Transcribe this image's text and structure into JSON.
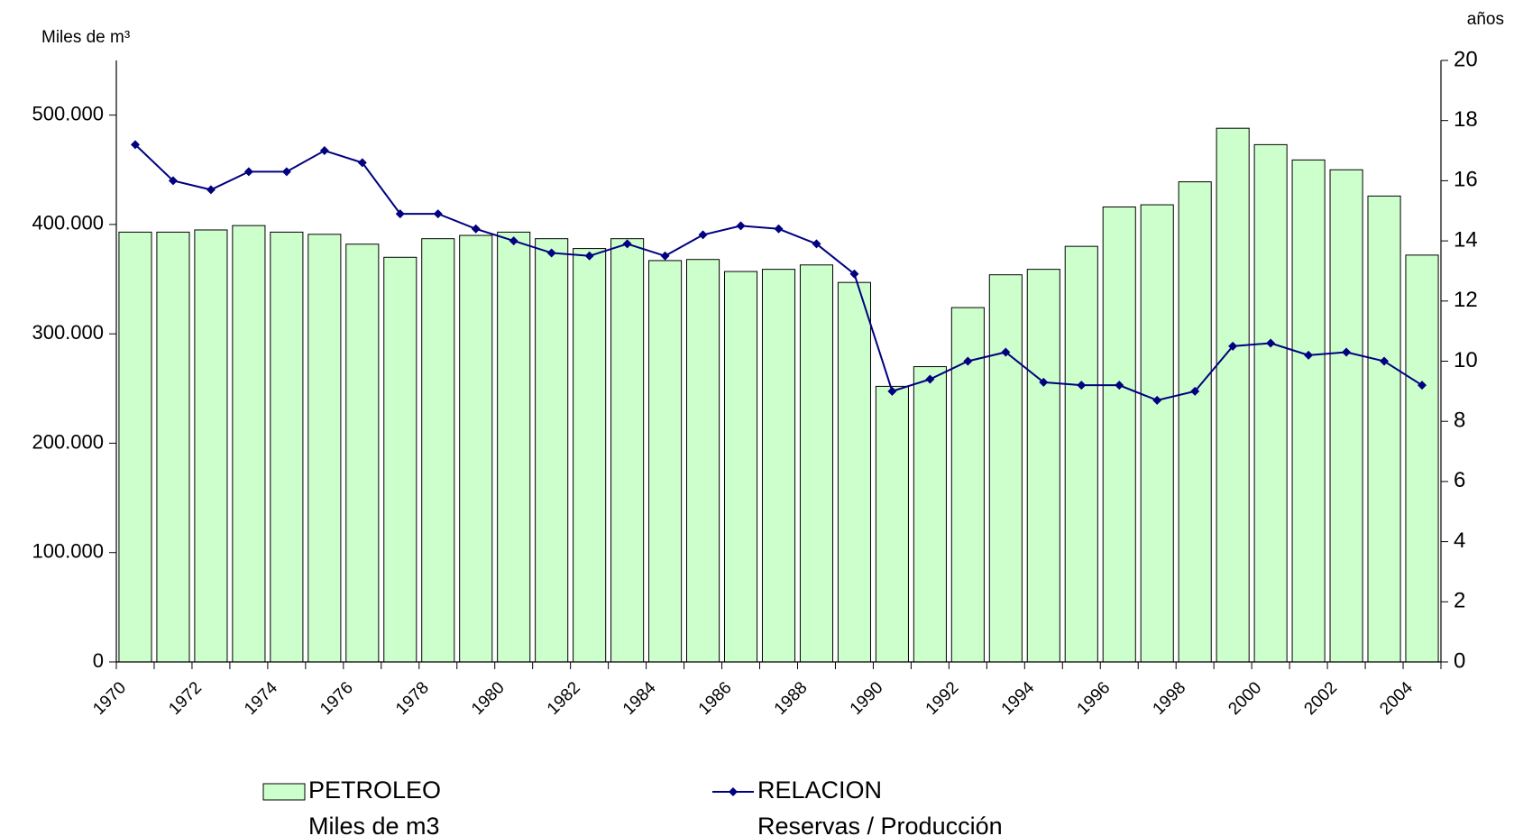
{
  "chart_data": {
    "type": "bar_line",
    "y_label": "Miles de m³",
    "y2_label": "años",
    "categories": [
      "1970",
      null,
      "1972",
      null,
      "1974",
      null,
      "1976",
      null,
      "1978",
      null,
      "1980",
      null,
      "1982",
      null,
      "1984",
      null,
      "1986",
      null,
      "1988",
      null,
      "1990",
      null,
      "1992",
      null,
      "1994",
      null,
      "1996",
      null,
      "1998",
      null,
      "2000",
      null,
      "2002",
      null,
      "2004"
    ],
    "series": [
      {
        "name": "PETROLEO",
        "description": "Miles de m3",
        "type": "bar",
        "color": "#ccffcc",
        "axis": "y",
        "values": [
          393000,
          393000,
          395000,
          399000,
          393000,
          391000,
          382000,
          370000,
          387000,
          390000,
          393000,
          387000,
          378000,
          387000,
          367000,
          368000,
          357000,
          359000,
          363000,
          347000,
          252000,
          270000,
          324000,
          354000,
          359000,
          380000,
          416000,
          418000,
          439000,
          488000,
          473000,
          459000,
          450000,
          426000,
          372000
        ]
      },
      {
        "name": "RELACION",
        "description": "Reservas / Producción",
        "type": "line",
        "color": "#000080",
        "axis": "y2",
        "values": [
          17.2,
          16.0,
          15.7,
          16.3,
          16.3,
          17.0,
          16.6,
          14.9,
          14.9,
          14.4,
          14.0,
          13.6,
          13.5,
          13.9,
          13.5,
          14.2,
          14.5,
          14.4,
          13.9,
          12.9,
          9.0,
          9.4,
          10.0,
          10.3,
          9.3,
          9.2,
          9.2,
          8.7,
          9.0,
          10.5,
          10.6,
          10.2,
          10.3,
          10.0,
          9.2
        ]
      }
    ],
    "ylim": [
      0,
      550000
    ],
    "yticks": [
      0,
      {
        "value": 100000,
        "label": "100.000"
      },
      {
        "value": 200000,
        "label": "200.000"
      },
      {
        "value": 300000,
        "label": "300.000"
      },
      {
        "value": 400000,
        "label": "400.000"
      },
      {
        "value": 500000,
        "label": "500.000"
      }
    ],
    "y2lim": [
      0,
      20
    ],
    "y2ticks": [
      0,
      2,
      4,
      6,
      8,
      10,
      12,
      14,
      16,
      18,
      20
    ],
    "grid": false,
    "legend": "bottom"
  }
}
